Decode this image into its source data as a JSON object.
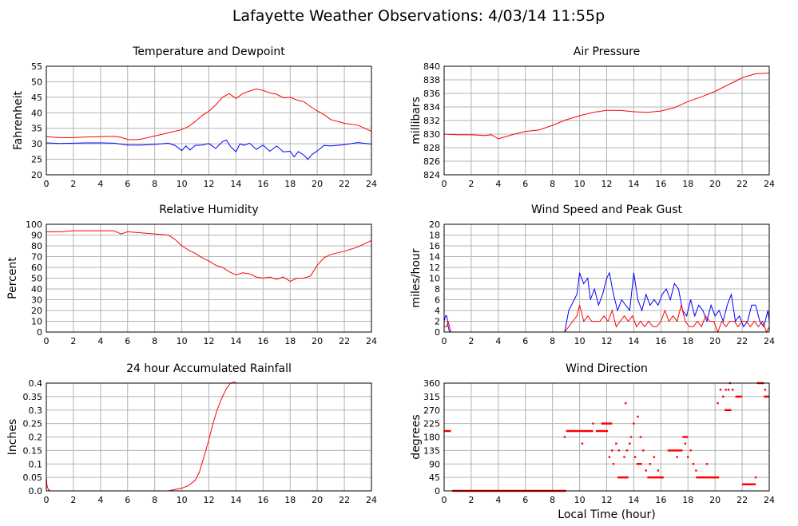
{
  "page": {
    "title": "Lafayette Weather Observations: 4/03/14 11:55p"
  },
  "colors": {
    "red": "#ff0000",
    "blue": "#0000ff",
    "grid": "#b3b3b3",
    "axis": "#000000"
  },
  "chart_data": [
    {
      "id": "temperature",
      "type": "line",
      "title": "Temperature and Dewpoint",
      "ylabel": "Fahrenheit",
      "xlabel": "",
      "xlim": [
        0,
        24
      ],
      "ylim": [
        20,
        55
      ],
      "xticks": [
        0,
        2,
        4,
        6,
        8,
        10,
        12,
        14,
        16,
        18,
        20,
        22,
        24
      ],
      "yticks": [
        20,
        25,
        30,
        35,
        40,
        45,
        50,
        55
      ],
      "grid": true,
      "series": [
        {
          "color": "#ff0000",
          "x": [
            0,
            1,
            2,
            3,
            4,
            5,
            5.5,
            6,
            6.5,
            7,
            8,
            9,
            10,
            10.5,
            11,
            11.5,
            12,
            12.5,
            13,
            13.5,
            14,
            14.5,
            15,
            15.5,
            16,
            16.5,
            17,
            17.5,
            18,
            18.5,
            19,
            19.5,
            20,
            20.5,
            21,
            22,
            23,
            24
          ],
          "y": [
            32.3,
            32,
            32,
            32.2,
            32.3,
            32.4,
            32.1,
            31.4,
            31.3,
            31.5,
            32.5,
            33.5,
            34.6,
            35.6,
            37.2,
            39.1,
            40.5,
            42.5,
            45,
            46.2,
            44.6,
            46.2,
            47,
            47.7,
            47.2,
            46.4,
            46,
            44.8,
            45,
            44.1,
            43.6,
            42,
            40.6,
            39.4,
            37.8,
            36.6,
            36,
            34
          ]
        },
        {
          "color": "#0000ff",
          "x": [
            0,
            1,
            2,
            3,
            4,
            5,
            6,
            7,
            8,
            9,
            9.5,
            10,
            10.3,
            10.6,
            11,
            11.5,
            12,
            12.5,
            13,
            13.3,
            13.6,
            14,
            14.3,
            14.6,
            15,
            15.5,
            16,
            16.5,
            17,
            17.5,
            18,
            18.3,
            18.6,
            19,
            19.3,
            19.6,
            20,
            20.5,
            21,
            22,
            23,
            24
          ],
          "y": [
            30.3,
            30.1,
            30.2,
            30.3,
            30.3,
            30.2,
            29.6,
            29.6,
            29.8,
            30.2,
            29.5,
            27.8,
            29.3,
            28,
            29.5,
            29.6,
            30.1,
            28.5,
            30.7,
            31.2,
            29.1,
            27.4,
            30,
            29.5,
            30.2,
            28.2,
            29.6,
            27.6,
            29.3,
            27.4,
            27.6,
            25.8,
            27.5,
            26.4,
            25,
            26.5,
            27.7,
            29.5,
            29.3,
            29.7,
            30.4,
            29.9
          ]
        }
      ]
    },
    {
      "id": "pressure",
      "type": "line",
      "title": "Air Pressure",
      "ylabel": "millibars",
      "xlabel": "",
      "xlim": [
        0,
        24
      ],
      "ylim": [
        824,
        840
      ],
      "xticks": [
        0,
        2,
        4,
        6,
        8,
        10,
        12,
        14,
        16,
        18,
        20,
        22,
        24
      ],
      "yticks": [
        824,
        826,
        828,
        830,
        832,
        834,
        836,
        838,
        840
      ],
      "grid": true,
      "series": [
        {
          "color": "#ff0000",
          "x": [
            0,
            1,
            2,
            3,
            3.5,
            4,
            4.5,
            5,
            6,
            7,
            8,
            9,
            10,
            11,
            12,
            13,
            14,
            15,
            16,
            17,
            18,
            19,
            20,
            21,
            22,
            23,
            24
          ],
          "y": [
            830,
            829.9,
            829.9,
            829.8,
            829.9,
            829.3,
            829.6,
            829.9,
            830.4,
            830.6,
            831.3,
            832.1,
            832.7,
            833.2,
            833.5,
            833.5,
            833.3,
            833.2,
            833.4,
            833.9,
            834.8,
            835.5,
            836.3,
            837.3,
            838.3,
            838.9,
            839
          ]
        }
      ]
    },
    {
      "id": "humidity",
      "type": "line",
      "title": "Relative Humidity",
      "ylabel": "Percent",
      "xlabel": "",
      "xlim": [
        0,
        24
      ],
      "ylim": [
        0,
        100
      ],
      "xticks": [
        0,
        2,
        4,
        6,
        8,
        10,
        12,
        14,
        16,
        18,
        20,
        22,
        24
      ],
      "yticks": [
        0,
        10,
        20,
        30,
        40,
        50,
        60,
        70,
        80,
        90,
        100
      ],
      "grid": true,
      "series": [
        {
          "color": "#ff0000",
          "x": [
            0,
            1,
            2,
            3,
            4,
            5,
            5.5,
            6,
            7,
            8,
            9,
            9.5,
            10,
            10.5,
            11,
            11.5,
            12,
            12.5,
            13,
            13.5,
            14,
            14.5,
            15,
            15.5,
            16,
            16.5,
            17,
            17.5,
            18,
            18.5,
            19,
            19.5,
            20,
            20.5,
            21,
            22,
            23,
            24
          ],
          "y": [
            93,
            93,
            94,
            94,
            94,
            94,
            91,
            93,
            92,
            91,
            90,
            86,
            80,
            76,
            73,
            69,
            66,
            62,
            60,
            56,
            53,
            55,
            54,
            51,
            50,
            51,
            49,
            51,
            47,
            50,
            50,
            52,
            62,
            69,
            72,
            75,
            79,
            85
          ]
        }
      ]
    },
    {
      "id": "wind",
      "type": "line",
      "title": "Wind Speed and Peak Gust",
      "ylabel": "miles/hour",
      "xlabel": "",
      "xlim": [
        0,
        24
      ],
      "ylim": [
        0,
        20
      ],
      "xticks": [
        0,
        2,
        4,
        6,
        8,
        10,
        12,
        14,
        16,
        18,
        20,
        22,
        24
      ],
      "yticks": [
        0,
        2,
        4,
        6,
        8,
        10,
        12,
        14,
        16,
        18,
        20
      ],
      "grid": true,
      "series": [
        {
          "color": "#0000ff",
          "x": [
            0,
            0.1,
            0.2,
            0.3,
            0.4,
            0.5,
            1,
            2,
            3,
            4,
            5,
            6,
            7,
            8,
            8.9,
            9.2,
            9.5,
            9.8,
            10,
            10.3,
            10.6,
            10.8,
            11.1,
            11.4,
            11.7,
            12,
            12.2,
            12.5,
            12.8,
            13.1,
            13.4,
            13.7,
            14,
            14.3,
            14.6,
            14.9,
            15.2,
            15.5,
            15.8,
            16.1,
            16.4,
            16.7,
            17,
            17.3,
            17.6,
            17.9,
            18.2,
            18.5,
            18.8,
            19.1,
            19.4,
            19.7,
            20,
            20.3,
            20.6,
            20.9,
            21.2,
            21.5,
            21.8,
            22.1,
            22.4,
            22.7,
            23,
            23.3,
            23.6,
            23.9,
            24
          ],
          "y": [
            2,
            3,
            3,
            1,
            0,
            0,
            0,
            0,
            0,
            0,
            0,
            0,
            0,
            0,
            0,
            4,
            5.5,
            7,
            11,
            9,
            10,
            6,
            8,
            5,
            7,
            10,
            11,
            7,
            4,
            6,
            5,
            4,
            11,
            6,
            4,
            7,
            5,
            6,
            5,
            7,
            8,
            6,
            9,
            8,
            4,
            3,
            6,
            3,
            5,
            4,
            2,
            5,
            3,
            4,
            2,
            5,
            7,
            2,
            3,
            1,
            2,
            5,
            5,
            2,
            1,
            4,
            2
          ]
        },
        {
          "color": "#ff0000",
          "x": [
            0,
            0.2,
            0.3,
            0.5,
            1,
            2,
            3,
            4,
            5,
            6,
            7,
            8,
            8.9,
            9.2,
            9.5,
            9.8,
            10,
            10.3,
            10.6,
            10.9,
            11.2,
            11.5,
            11.8,
            12.1,
            12.4,
            12.7,
            13,
            13.3,
            13.6,
            13.9,
            14.2,
            14.5,
            14.8,
            15.1,
            15.4,
            15.7,
            16,
            16.3,
            16.6,
            16.9,
            17.2,
            17.5,
            17.8,
            18.1,
            18.4,
            18.7,
            19,
            19.3,
            19.6,
            19.9,
            20.2,
            20.5,
            20.8,
            21.1,
            21.4,
            21.7,
            22,
            22.3,
            22.6,
            22.9,
            23.2,
            23.5,
            23.8,
            24
          ],
          "y": [
            1,
            1,
            2,
            0,
            0,
            0,
            0,
            0,
            0,
            0,
            0,
            0,
            0,
            1,
            2,
            3,
            5,
            2,
            3,
            2,
            2,
            2,
            3,
            2,
            4,
            1,
            2,
            3,
            2,
            3,
            1,
            2,
            1,
            2,
            1,
            1,
            2,
            4,
            2,
            3,
            2,
            5,
            2,
            1,
            1,
            2,
            1,
            3,
            2,
            2,
            0,
            2,
            1,
            2,
            2,
            1,
            2,
            2,
            1,
            2,
            1,
            2,
            0,
            1
          ]
        }
      ]
    },
    {
      "id": "rainfall",
      "type": "line",
      "title": "24 hour Accumulated Rainfall",
      "ylabel": "Inches",
      "xlabel": "",
      "xlim": [
        0,
        24
      ],
      "ylim": [
        0,
        0.4
      ],
      "xticks": [
        0,
        2,
        4,
        6,
        8,
        10,
        12,
        14,
        16,
        18,
        20,
        22,
        24
      ],
      "yticks": [
        0,
        0.05,
        0.1,
        0.15,
        0.2,
        0.25,
        0.3,
        0.35,
        0.4
      ],
      "ytick_labels": [
        "0.0",
        "0.05",
        "0.1",
        "0.15",
        "0.2",
        "0.25",
        "0.3",
        "0.35",
        "0.4"
      ],
      "grid": true,
      "series": [
        {
          "color": "#ff0000",
          "x": [
            0,
            0.05,
            0.15,
            0.3,
            1,
            2,
            4,
            6,
            8,
            9,
            9.5,
            10,
            10.5,
            11,
            11.3,
            11.6,
            12,
            12.3,
            12.6,
            13,
            13.3,
            13.6,
            14
          ],
          "y": [
            0.05,
            0.02,
            0.005,
            0,
            0,
            0,
            0,
            0,
            0,
            0,
            0.005,
            0.01,
            0.02,
            0.04,
            0.07,
            0.12,
            0.19,
            0.25,
            0.3,
            0.35,
            0.38,
            0.4,
            0.405
          ]
        }
      ]
    },
    {
      "id": "direction",
      "type": "scatter",
      "title": "Wind Direction",
      "ylabel": "degrees",
      "xlabel": "Local Time (hour)",
      "xlim": [
        0,
        24
      ],
      "ylim": [
        0,
        360
      ],
      "xticks": [
        0,
        2,
        4,
        6,
        8,
        10,
        12,
        14,
        16,
        18,
        20,
        22,
        24
      ],
      "yticks": [
        0,
        45,
        90,
        135,
        180,
        225,
        270,
        315,
        360
      ],
      "grid": true,
      "series": [
        {
          "color": "#ff0000",
          "segments": [
            {
              "x": [
                0,
                0.5
              ],
              "y": 200
            },
            {
              "x": [
                0.6,
                9
              ],
              "y": 0
            },
            {
              "x": [
                9,
                11
              ],
              "y": 200
            },
            {
              "x": [
                11.2,
                12.1
              ],
              "y": 200
            },
            {
              "x": [
                11.6,
                12.4
              ],
              "y": 225
            },
            {
              "x": [
                12.8,
                13.6
              ],
              "y": 45
            },
            {
              "x": [
                14.2,
                14.6
              ],
              "y": 90
            },
            {
              "x": [
                15,
                16.2
              ],
              "y": 45
            },
            {
              "x": [
                16.5,
                17.6
              ],
              "y": 135
            },
            {
              "x": [
                17.6,
                18
              ],
              "y": 180
            },
            {
              "x": [
                18.6,
                20.3
              ],
              "y": 45
            },
            {
              "x": [
                20.7,
                21.2
              ],
              "y": 270
            },
            {
              "x": [
                21.5,
                22
              ],
              "y": 315
            },
            {
              "x": [
                22,
                23
              ],
              "y": 22
            },
            {
              "x": [
                23.1,
                23.6
              ],
              "y": 360
            },
            {
              "x": [
                23.6,
                24
              ],
              "y": 315
            }
          ],
          "points": [
            [
              8.9,
              180
            ],
            [
              10.2,
              158
            ],
            [
              11,
              225
            ],
            [
              12.2,
              113
            ],
            [
              12.4,
              135
            ],
            [
              12.5,
              90
            ],
            [
              12.7,
              158
            ],
            [
              12.9,
              135
            ],
            [
              13.3,
              113
            ],
            [
              13.4,
              293
            ],
            [
              13.5,
              135
            ],
            [
              13.7,
              158
            ],
            [
              13.8,
              180
            ],
            [
              14,
              225
            ],
            [
              14.1,
              113
            ],
            [
              14.3,
              248
            ],
            [
              14.5,
              180
            ],
            [
              14.7,
              135
            ],
            [
              14.9,
              68
            ],
            [
              15.2,
              90
            ],
            [
              15.5,
              113
            ],
            [
              15.8,
              68
            ],
            [
              16.1,
              45
            ],
            [
              17.2,
              113
            ],
            [
              17.8,
              158
            ],
            [
              18,
              113
            ],
            [
              18.2,
              135
            ],
            [
              18.4,
              90
            ],
            [
              18.6,
              68
            ],
            [
              19.4,
              90
            ],
            [
              20.2,
              293
            ],
            [
              20.4,
              338
            ],
            [
              20.6,
              315
            ],
            [
              20.8,
              338
            ],
            [
              21,
              338
            ],
            [
              21.1,
              360
            ],
            [
              21.3,
              338
            ],
            [
              22.4,
              22
            ],
            [
              23,
              45
            ],
            [
              23.7,
              338
            ]
          ]
        }
      ]
    }
  ]
}
